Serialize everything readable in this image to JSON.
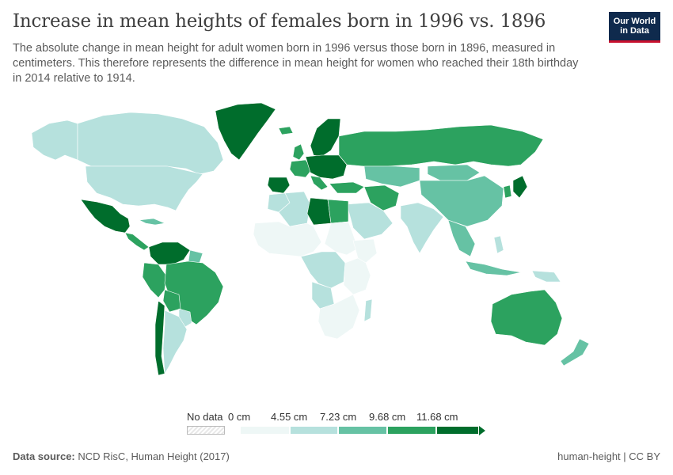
{
  "header": {
    "title": "Increase in mean heights of females born in 1996 vs. 1896",
    "subtitle": "The absolute change in mean height for adult women born in 1996 versus those born in 1896, measured in centimeters. This therefore represents the difference in mean height for women who reached their 18th birthday in 2014 relative to 1914."
  },
  "logo": {
    "line1": "Our World",
    "line2": "in Data"
  },
  "legend": {
    "nodata_label": "No data",
    "tick_labels": [
      "0 cm",
      "4.55 cm",
      "7.23 cm",
      "9.68 cm",
      "11.68 cm"
    ],
    "bin_colors": [
      "#eef7f6",
      "#b6e1dd",
      "#66c2a4",
      "#2ca25f",
      "#006d2c"
    ]
  },
  "footer": {
    "source_label": "Data source:",
    "source_text": "NCD RisC, Human Height (2017)",
    "slug": "human-height | CC BY"
  },
  "colors": {
    "nodata": "#e8e8e8",
    "bin0": "#eef7f6",
    "bin1": "#b6e1dd",
    "bin2": "#66c2a4",
    "bin3": "#2ca25f",
    "bin4": "#006d2c",
    "border": "#ffffff"
  }
}
